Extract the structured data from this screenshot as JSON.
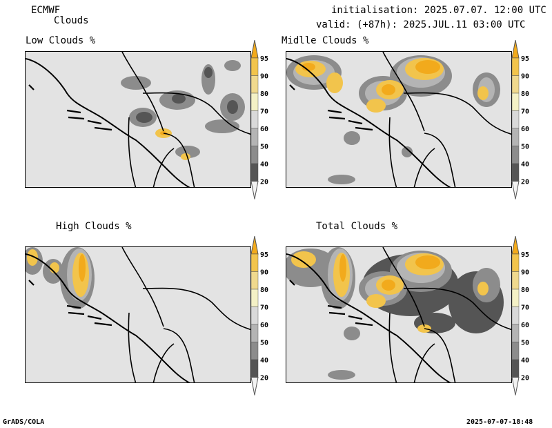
{
  "header": {
    "model": "ECMWF",
    "product": "Clouds",
    "init": "initialisation: 2025.07.07. 12:00 UTC",
    "valid": "valid: (+87h): 2025.JUL.11 03:00 UTC"
  },
  "panels": [
    {
      "title": "Low Clouds %"
    },
    {
      "title": "Midlle Clouds %"
    },
    {
      "title": "High Clouds %"
    },
    {
      "title": "Total Clouds %"
    }
  ],
  "colorbar": {
    "labels": [
      "95",
      "90",
      "80",
      "70",
      "60",
      "50",
      "40",
      "20"
    ],
    "colors": [
      "#f2aa1c",
      "#f2c44c",
      "#f0d98e",
      "#f4f1c6",
      "#d9d9d9",
      "#b4b4b4",
      "#8c8c8c",
      "#555555",
      "#f2f2f2"
    ]
  },
  "footer": {
    "left": "GrADS/COLA",
    "right": "2025-07-07-18:48"
  }
}
